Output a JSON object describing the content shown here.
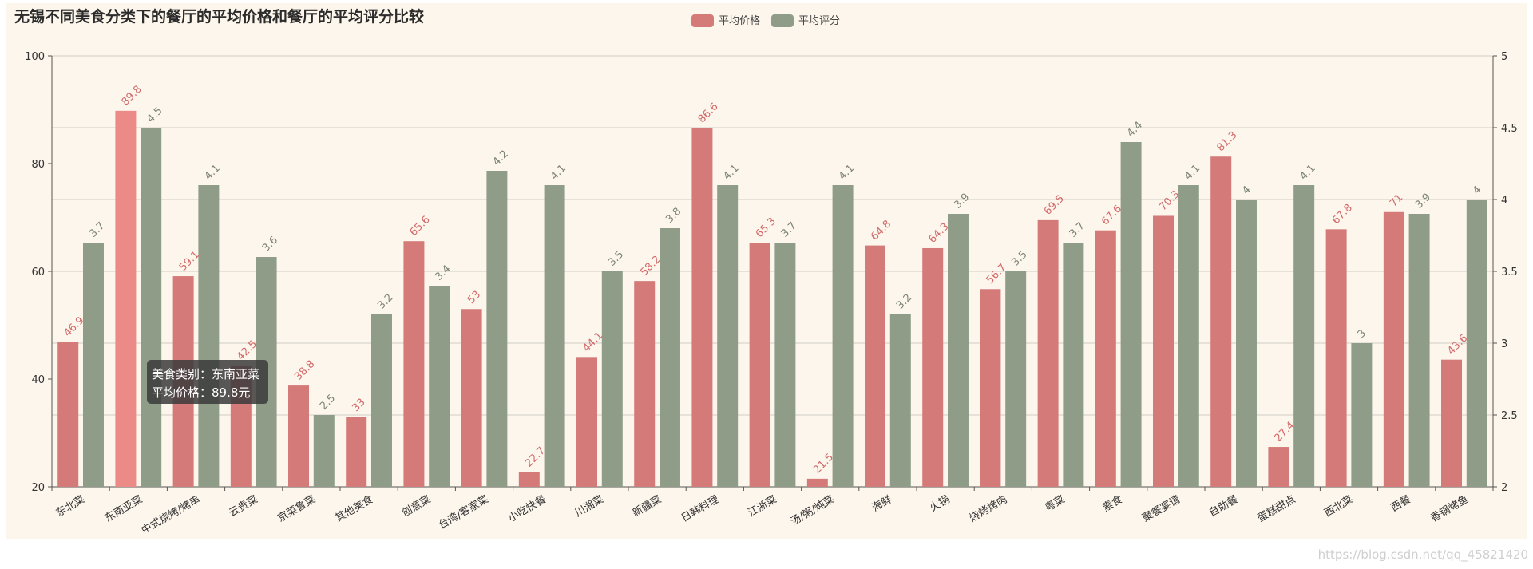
{
  "chart_data": {
    "type": "bar",
    "title": "无锡不同美食分类下的餐厅的平均价格和餐厅的平均评分比较",
    "categories": [
      "东北菜",
      "东南亚菜",
      "中式烧烤/烤串",
      "云贵菜",
      "京菜鲁菜",
      "其他美食",
      "创意菜",
      "台湾/客家菜",
      "小吃快餐",
      "川湘菜",
      "新疆菜",
      "日韩料理",
      "江浙菜",
      "汤/粥/炖菜",
      "海鲜",
      "火锅",
      "烧烤烤肉",
      "粤菜",
      "素食",
      "聚餐宴请",
      "自助餐",
      "蛋糕甜点",
      "西北菜",
      "西餐",
      "香锅烤鱼"
    ],
    "series": [
      {
        "name": "平均价格",
        "axis": "left",
        "color": "#d47a78",
        "values": [
          46.9,
          89.8,
          59.1,
          42.5,
          38.8,
          33,
          65.6,
          53,
          22.7,
          44.1,
          58.2,
          86.6,
          65.3,
          21.5,
          64.8,
          64.3,
          56.7,
          69.5,
          67.6,
          70.3,
          81.3,
          27.4,
          67.8,
          71,
          43.6
        ]
      },
      {
        "name": "平均评分",
        "axis": "right",
        "color": "#8f9c88",
        "values": [
          3.7,
          4.5,
          4.1,
          3.6,
          2.5,
          3.2,
          3.4,
          4.2,
          4.1,
          3.5,
          3.8,
          4.1,
          3.7,
          4.1,
          3.2,
          3.9,
          3.5,
          3.7,
          4.4,
          4.1,
          4,
          4.1,
          3,
          3.9,
          4
        ]
      }
    ],
    "y_left": {
      "min": 20,
      "max": 100,
      "ticks": [
        20,
        40,
        60,
        80,
        100
      ]
    },
    "y_right": {
      "min": 2,
      "max": 5,
      "ticks": [
        2,
        2.5,
        3,
        3.5,
        4,
        4.5,
        5
      ]
    },
    "legend_position": "top-center",
    "grid": true
  },
  "tooltip": {
    "line1": "美食类别：东南亚菜",
    "line2": "平均价格：89.8元"
  },
  "watermark": "https://blog.csdn.net/qq_45821420",
  "colors": {
    "background": "#fdf6ec",
    "highlight": "#ec8a87"
  }
}
